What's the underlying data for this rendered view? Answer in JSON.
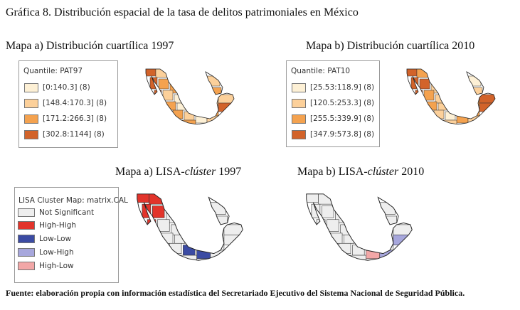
{
  "figure_title": "Gráfica 8. Distribución espacial de la tasa de delitos patrimoniales en México",
  "panels": {
    "quart_1997": {
      "title": "Mapa a) Distribución cuartílica 1997",
      "legend_title": "Quantile: PAT97",
      "classes": [
        {
          "label": "[0:140.3]  (8)",
          "color": "#fdf0d5"
        },
        {
          "label": "[148.4:170.3]  (8)",
          "color": "#fcd09a"
        },
        {
          "label": "[171.2:266.3]  (8)",
          "color": "#f4a24f"
        },
        {
          "label": "[302.8:1144]  (8)",
          "color": "#d2632a"
        }
      ]
    },
    "quart_2010": {
      "title": "Mapa b) Distribución cuartílica 2010",
      "legend_title": "Quantile: PAT10",
      "classes": [
        {
          "label": "[25.53:118.9]  (8)",
          "color": "#fdf0d5"
        },
        {
          "label": "[120.5:253.3]  (8)",
          "color": "#fcd09a"
        },
        {
          "label": "[255.5:339.9]  (8)",
          "color": "#f4a24f"
        },
        {
          "label": "[347.9:573.8]  (8)",
          "color": "#d2632a"
        }
      ]
    },
    "lisa_1997": {
      "title_prefix": "Mapa a) LISA-",
      "title_em": "clúster",
      "title_suffix": " 1997",
      "legend_title": "LISA Cluster Map: matrix.CAL",
      "classes": [
        {
          "label": "Not Significant",
          "color": "#eeeeee"
        },
        {
          "label": "High-High",
          "color": "#e2342b"
        },
        {
          "label": "Low-Low",
          "color": "#3b4ba3"
        },
        {
          "label": "Low-High",
          "color": "#a7a7dc"
        },
        {
          "label": "High-Low",
          "color": "#f2a7a7"
        }
      ]
    },
    "lisa_2010": {
      "title_prefix": "Mapa b) LISA-",
      "title_em": "clúster",
      "title_suffix": " 2010"
    }
  },
  "footer": "Fuente: elaboración propia con información estadística del Secretariado Ejecutivo del Sistema Nacional de Seguridad Pública."
}
